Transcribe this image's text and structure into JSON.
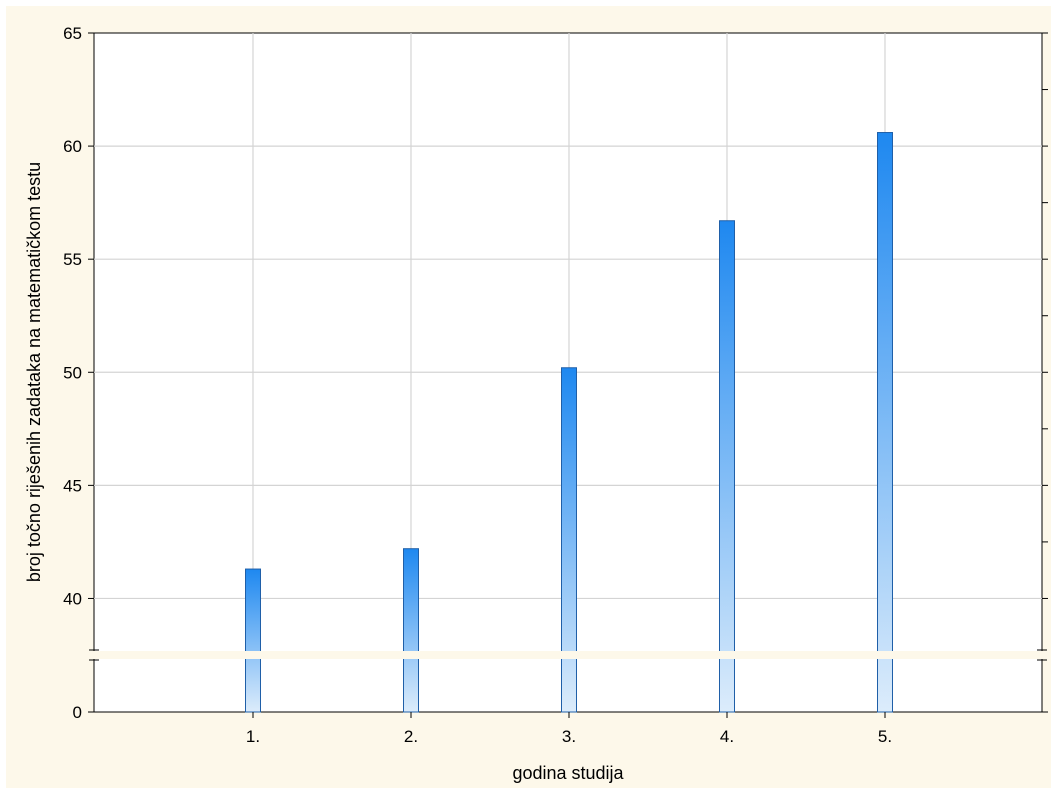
{
  "chart_data": {
    "type": "bar",
    "title": "",
    "xlabel": "godina studija",
    "ylabel": "broj točno riješenih zadataka na matematičkom testu",
    "categories": [
      "1.",
      "2.",
      "3.",
      "4.",
      "5."
    ],
    "values": [
      41.3,
      42.2,
      50.2,
      56.7,
      60.6
    ],
    "ylim": [
      0,
      65
    ],
    "y_axis_break": [
      0,
      37.5
    ],
    "yticks": [
      "0",
      "40",
      "45",
      "50",
      "55",
      "60",
      "65"
    ],
    "grid": true,
    "bar_fill": "vertical gradient, deeper blue for higher values",
    "colors": {
      "background": "#fdf8ea",
      "plot_area": "#ffffff",
      "bar_edge": "#1f5fa8",
      "bar_light": "#dcecfb",
      "bar_dark": "#1e88f0",
      "grid": "#d4d4d4"
    }
  }
}
